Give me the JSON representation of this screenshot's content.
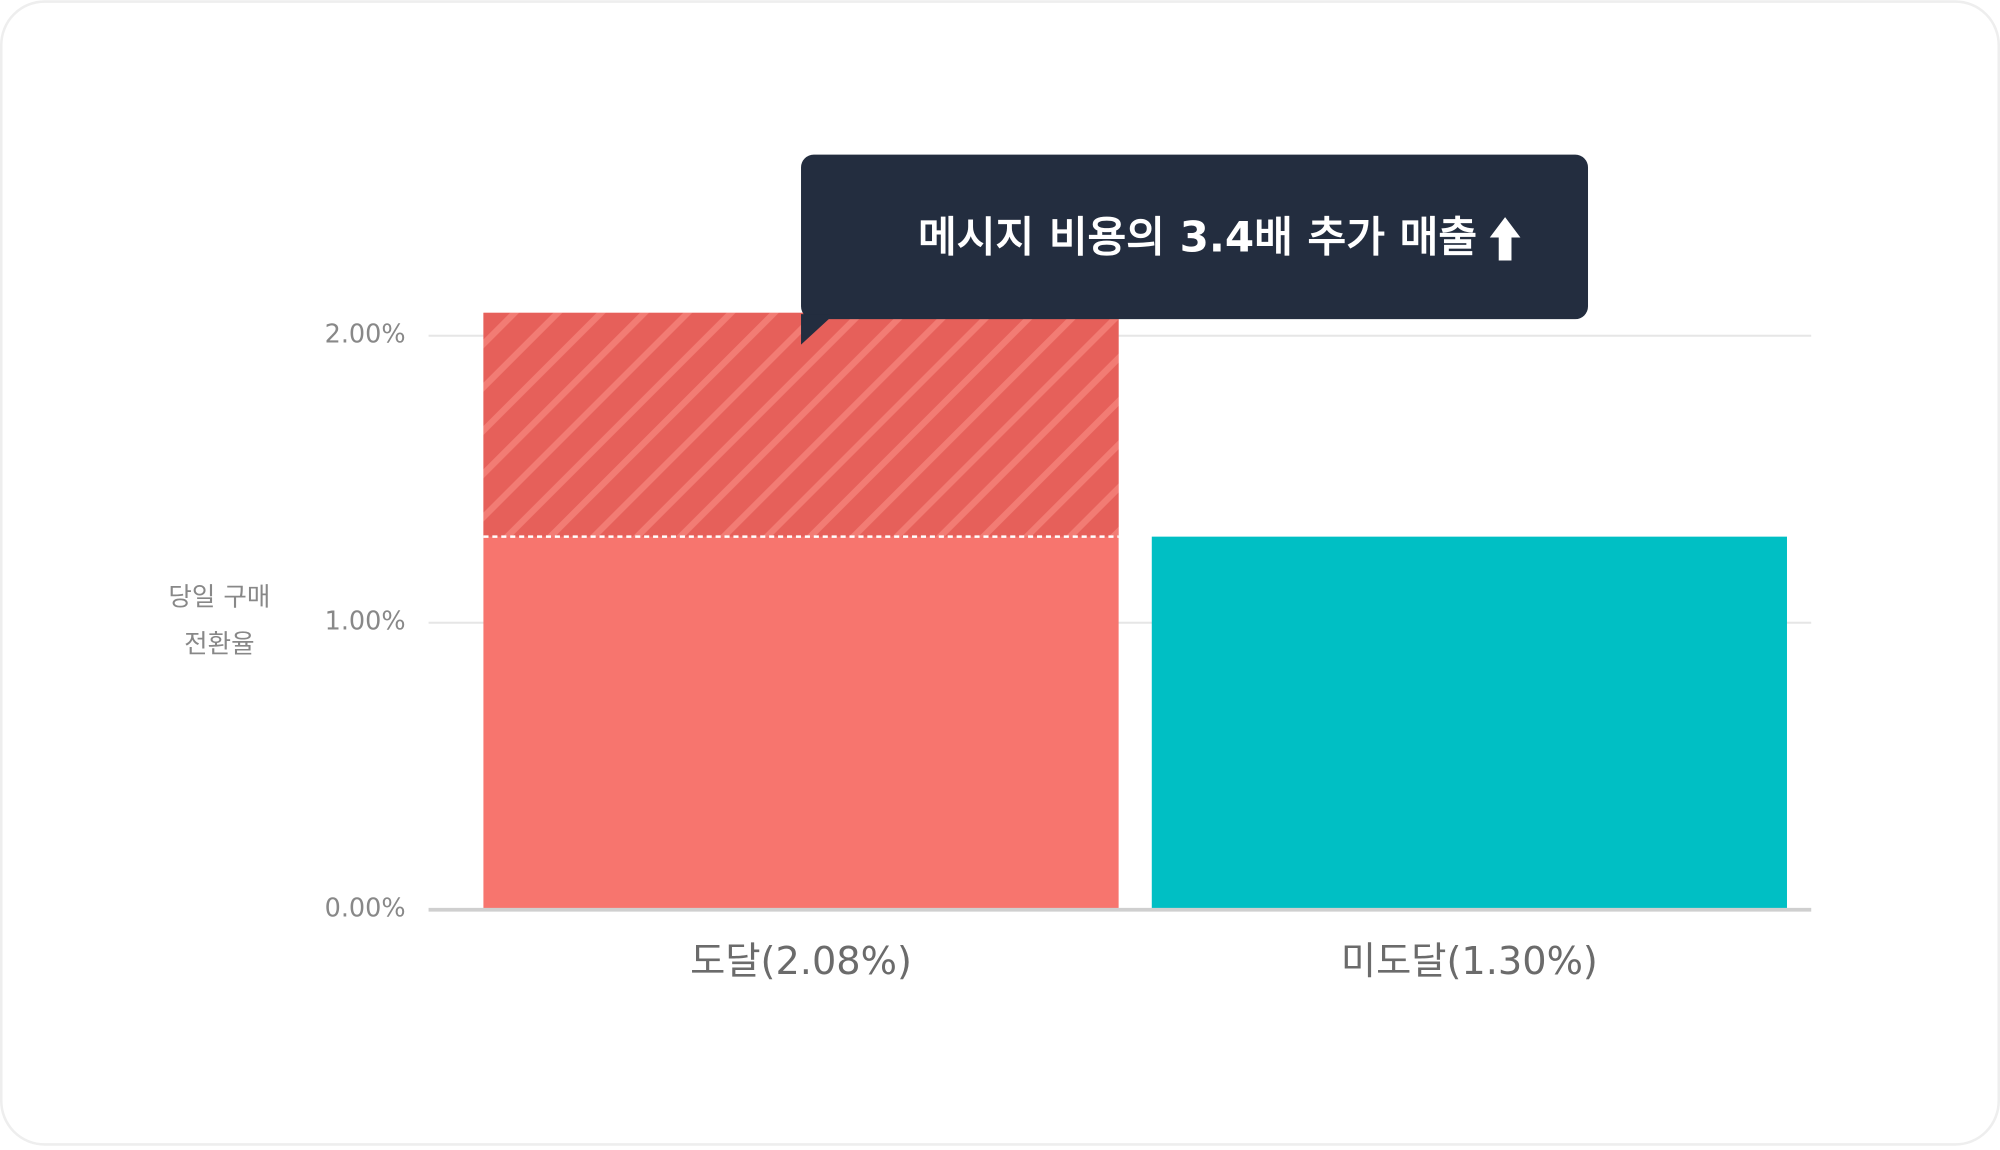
{
  "chart_data": {
    "type": "bar",
    "y_label": [
      "당일 구매",
      "전환율"
    ],
    "annotation": "메시지 비용의 3.4배 추가 매출",
    "categories": [
      "도달(2.08%)",
      "미도달(1.30%)"
    ],
    "values": [
      2.08,
      1.3
    ],
    "colors": [
      "#f7756e",
      "#00bfc4"
    ],
    "ylim": [
      0,
      2.2
    ],
    "yticks": [
      {
        "value": 0,
        "label": "0.00%"
      },
      {
        "value": 1,
        "label": "1.00%"
      },
      {
        "value": 2,
        "label": "2.00%"
      }
    ],
    "grid": true
  }
}
